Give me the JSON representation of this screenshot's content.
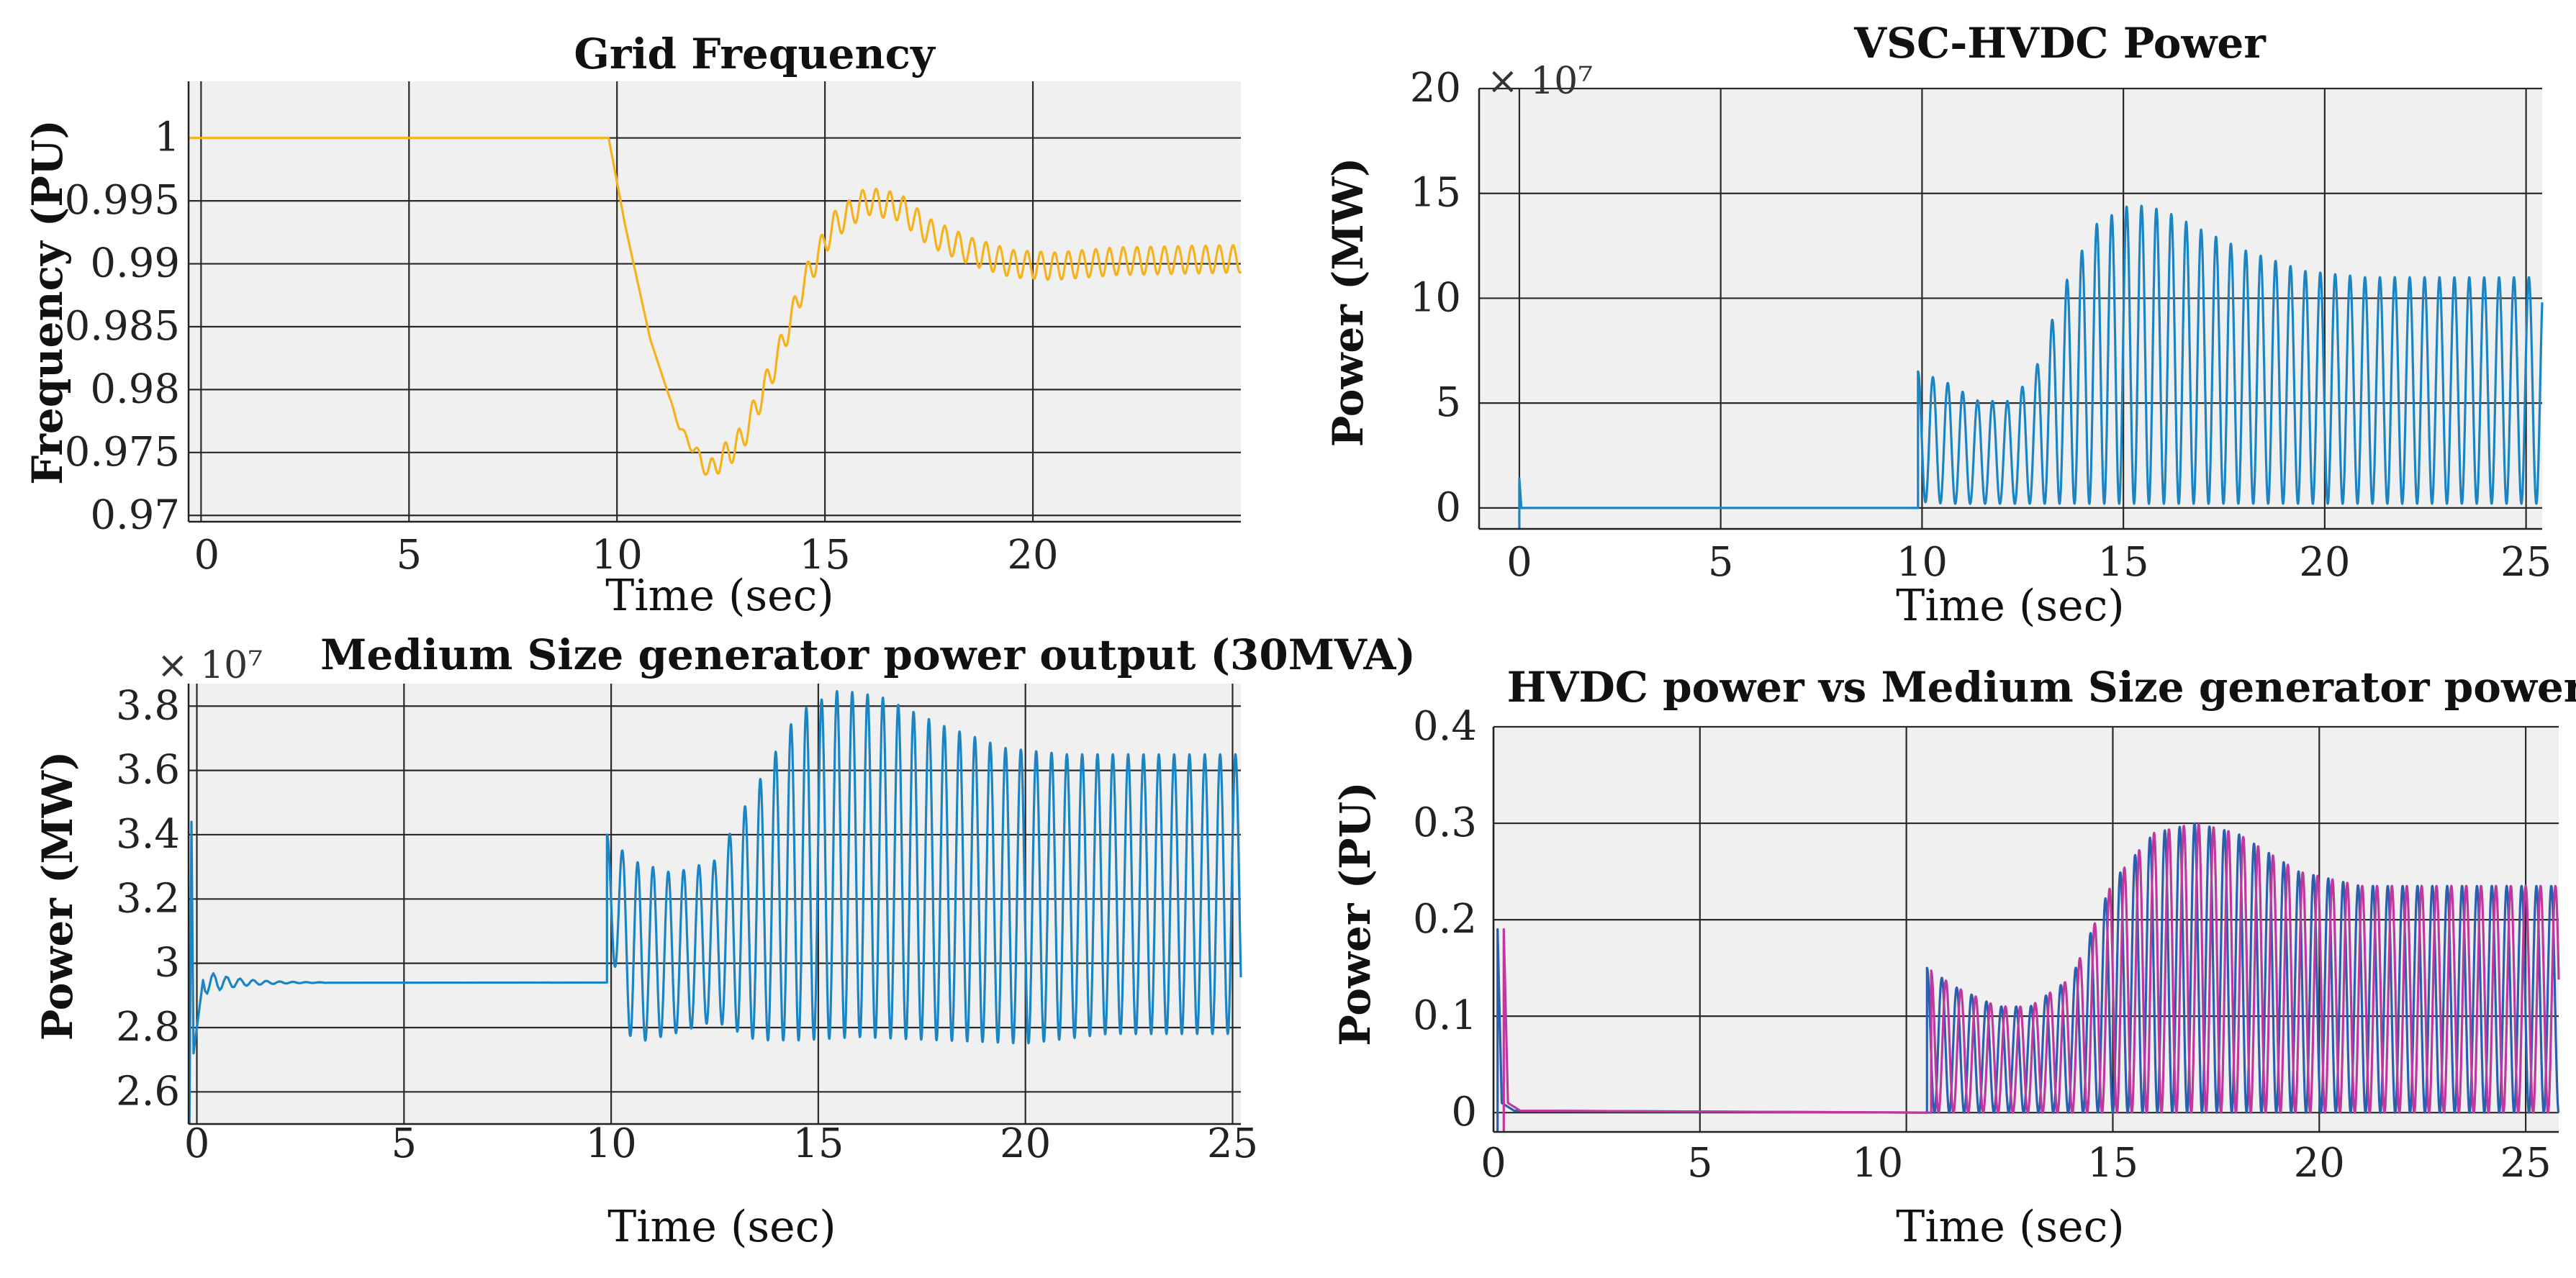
{
  "chart_data": [
    {
      "id": "grid-frequency",
      "type": "line",
      "title": "Grid Frequency",
      "xlabel": "Time (sec)",
      "ylabel": "Frequency (PU)",
      "xlim": [
        -0.3,
        25
      ],
      "ylim": [
        0.9695,
        1.0045
      ],
      "xticks": [
        0,
        5,
        10,
        15,
        20
      ],
      "xtick_labels": [
        "0",
        "5",
        "10",
        "15",
        "20"
      ],
      "yticks": [
        0.97,
        0.975,
        0.98,
        0.985,
        0.99,
        0.995,
        1
      ],
      "ytick_labels": [
        "0.97",
        "0.975",
        "0.98",
        "0.985",
        "0.99",
        "0.995",
        "1"
      ],
      "multiplier": "",
      "grid": true,
      "series": [
        {
          "name": "frequency",
          "color": "#f5b21b",
          "x": [
            -0.3,
            9.8,
            10.2,
            10.8,
            11.5,
            12.2,
            13.0,
            13.8,
            14.5,
            15.2,
            16.0,
            16.8,
            17.5,
            18.5,
            19.5,
            20.5,
            22.0,
            25.0
          ],
          "y": [
            1.0,
            1.0,
            0.993,
            0.984,
            0.977,
            0.9735,
            0.976,
            0.982,
            0.9885,
            0.993,
            0.995,
            0.9945,
            0.9925,
            0.991,
            0.99,
            0.9898,
            0.9902,
            0.9904
          ],
          "ripple_start": 11.2,
          "ripple_amp": 0.0011,
          "ripple_period": 0.33
        }
      ]
    },
    {
      "id": "vsc-hvdc-power",
      "type": "line",
      "title": "VSC-HVDC Power",
      "xlabel": "Time (sec)",
      "ylabel": "Power (MW)",
      "xlim": [
        -1,
        25.4
      ],
      "ylim": [
        -1,
        20
      ],
      "xticks": [
        0,
        5,
        10,
        15,
        20,
        25
      ],
      "xtick_labels": [
        "0",
        "5",
        "10",
        "15",
        "20",
        "25"
      ],
      "yticks": [
        0,
        5,
        10,
        15,
        20
      ],
      "ytick_labels": [
        "0",
        "5",
        "10",
        "15",
        "20"
      ],
      "multiplier": "× 10⁷",
      "grid": true,
      "series": [
        {
          "name": "hvdc-power",
          "color": "#1a84c4",
          "base": [
            [
              -1,
              0
            ],
            [
              9.9,
              0
            ]
          ],
          "osc_start": 9.9,
          "osc_end": 25.4,
          "osc_period": 0.37,
          "low_t": [
            9.9,
            10.6,
            11.4,
            12.2,
            12.8,
            13.5,
            14.3,
            15.2,
            16.0,
            17.0,
            18.0,
            19.5,
            21.0,
            25.4
          ],
          "low_v": [
            0.3,
            0.2,
            0.2,
            0.2,
            0.2,
            0.2,
            0.2,
            0.2,
            0.2,
            0.2,
            0.2,
            0.2,
            0.2,
            0.2
          ],
          "high_t": [
            9.9,
            10.6,
            11.4,
            12.2,
            12.8,
            13.5,
            14.3,
            15.2,
            16.0,
            17.0,
            18.0,
            19.5,
            21.0,
            25.4
          ],
          "high_v": [
            6.5,
            6.0,
            5.1,
            5.1,
            6.5,
            10.5,
            13.5,
            14.5,
            14.2,
            13.2,
            12.3,
            11.3,
            11.0,
            11.0
          ],
          "spike_t": 0.0,
          "spike_v": 1.4
        }
      ]
    },
    {
      "id": "medium-generator-power",
      "type": "line",
      "title": "Medium Size generator power output (30MVA)",
      "xlabel": "Time (sec)",
      "ylabel": "Power (MW)",
      "xlim": [
        -0.2,
        25.2
      ],
      "ylim": [
        2.5,
        3.87
      ],
      "xticks": [
        0,
        5,
        10,
        15,
        20,
        25
      ],
      "xtick_labels": [
        "0",
        "5",
        "10",
        "15",
        "20",
        "25"
      ],
      "yticks": [
        2.6,
        2.8,
        3,
        3.2,
        3.4,
        3.6,
        3.8
      ],
      "ytick_labels": [
        "2.6",
        "2.8",
        "3",
        "3.2",
        "3.4",
        "3.6",
        "3.8"
      ],
      "multiplier": "× 10⁷",
      "grid": true,
      "series": [
        {
          "name": "generator-power",
          "color": "#1a84c4",
          "base_value": 2.94,
          "osc_start": 9.9,
          "osc_end": 25.2,
          "osc_period": 0.37,
          "low_t": [
            9.9,
            10.5,
            11.5,
            12.5,
            13.5,
            14.5,
            16.0,
            18.0,
            20.0,
            22.0,
            25.2
          ],
          "low_v": [
            3.1,
            2.75,
            2.78,
            2.82,
            2.76,
            2.76,
            2.77,
            2.76,
            2.75,
            2.78,
            2.78
          ],
          "high_t": [
            9.9,
            10.5,
            11.5,
            12.5,
            13.5,
            14.5,
            15.5,
            16.5,
            18.0,
            19.5,
            21.0,
            25.2
          ],
          "high_v": [
            3.4,
            3.32,
            3.28,
            3.32,
            3.55,
            3.78,
            3.85,
            3.83,
            3.74,
            3.67,
            3.65,
            3.65
          ],
          "spike_top": 3.44,
          "spike_bottom": 2.5
        }
      ]
    },
    {
      "id": "hvdc-vs-generator",
      "type": "line",
      "title": "HVDC power vs Medium Size generator power",
      "xlabel": "Time (sec)",
      "ylabel": "Power (PU)",
      "xlim": [
        0,
        25.8
      ],
      "ylim": [
        -0.02,
        0.4
      ],
      "xticks": [
        0,
        5,
        10,
        15,
        20,
        25
      ],
      "xtick_labels": [
        "0",
        "5",
        "10",
        "15",
        "20",
        "25"
      ],
      "yticks": [
        0,
        0.1,
        0.2,
        0.3,
        0.4
      ],
      "ytick_labels": [
        "0",
        "0.1",
        "0.2",
        "0.3",
        "0.4"
      ],
      "multiplier": "",
      "grid": true,
      "series": [
        {
          "name": "hvdc-power-pu",
          "color": "#2a5fb0",
          "osc_start": 10.5,
          "osc_period": 0.36,
          "spike_t": 0.1,
          "spike_v": 0.19,
          "low_v": 0.0,
          "high_t": [
            10.5,
            11.2,
            12.2,
            13.0,
            14.0,
            15.0,
            16.0,
            17.0,
            18.0,
            19.5,
            21.0,
            25.8
          ],
          "high_v": [
            0.15,
            0.13,
            0.11,
            0.11,
            0.14,
            0.24,
            0.29,
            0.3,
            0.29,
            0.25,
            0.235,
            0.235
          ]
        },
        {
          "name": "generator-power-pu",
          "color": "#c0389e",
          "osc_start": 10.6,
          "osc_period": 0.36,
          "spike_t": 0.25,
          "spike_v": 0.19,
          "low_v": 0.0,
          "high_t": [
            10.5,
            11.2,
            12.2,
            13.0,
            14.0,
            15.0,
            16.0,
            17.0,
            18.0,
            19.5,
            21.0,
            25.8
          ],
          "high_v": [
            0.15,
            0.13,
            0.11,
            0.11,
            0.14,
            0.24,
            0.29,
            0.3,
            0.29,
            0.25,
            0.235,
            0.235
          ]
        }
      ]
    }
  ]
}
